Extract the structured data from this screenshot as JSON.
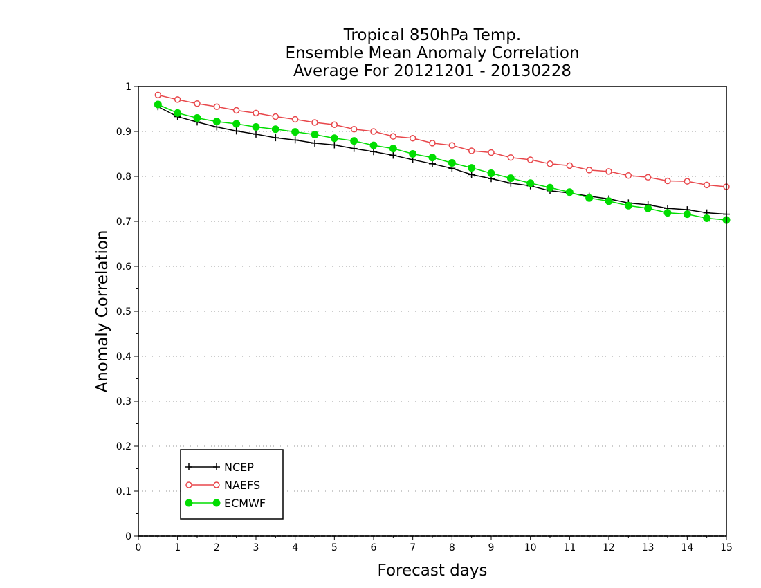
{
  "chart_data": {
    "type": "line",
    "title": [
      "Tropical 850hPa Temp.",
      "Ensemble Mean Anomaly Correlation",
      "Average For 20121201 - 20130228"
    ],
    "xlabel": "Forecast days",
    "ylabel": "Anomaly Correlation",
    "xlim": [
      0,
      15
    ],
    "ylim": [
      0,
      1
    ],
    "xticks": [
      "0",
      "1",
      "2",
      "3",
      "4",
      "5",
      "6",
      "7",
      "8",
      "9",
      "10",
      "11",
      "12",
      "13",
      "14",
      "15"
    ],
    "yticks": [
      "0",
      "0.1",
      "0.2",
      "0.3",
      "0.4",
      "0.5",
      "0.6",
      "0.7",
      "0.8",
      "0.9",
      "1"
    ],
    "grid": "horizontal-dotted",
    "legend_position": "bottom-left",
    "x": [
      0.5,
      1,
      1.5,
      2,
      2.5,
      3,
      3.5,
      4,
      4.5,
      5,
      5.5,
      6,
      6.5,
      7,
      7.5,
      8,
      8.5,
      9,
      9.5,
      10,
      10.5,
      11,
      11.5,
      12,
      12.5,
      13,
      13.5,
      14,
      14.5,
      15
    ],
    "series": [
      {
        "name": "NCEP",
        "color": "#000000",
        "marker": "plus",
        "values": [
          0.955,
          0.933,
          0.921,
          0.91,
          0.901,
          0.894,
          0.886,
          0.881,
          0.874,
          0.87,
          0.862,
          0.855,
          0.847,
          0.837,
          0.828,
          0.818,
          0.804,
          0.795,
          0.785,
          0.779,
          0.768,
          0.763,
          0.756,
          0.75,
          0.741,
          0.737,
          0.729,
          0.726,
          0.719,
          0.716
        ]
      },
      {
        "name": "NAEFS",
        "color": "#e8474b",
        "marker": "open-circle",
        "values": [
          0.981,
          0.971,
          0.962,
          0.955,
          0.947,
          0.941,
          0.933,
          0.927,
          0.92,
          0.915,
          0.905,
          0.9,
          0.889,
          0.885,
          0.874,
          0.869,
          0.857,
          0.853,
          0.842,
          0.837,
          0.828,
          0.824,
          0.814,
          0.811,
          0.802,
          0.798,
          0.79,
          0.789,
          0.781,
          0.777
        ]
      },
      {
        "name": "ECMWF",
        "color": "#00dd00",
        "marker": "filled-circle",
        "values": [
          0.96,
          0.941,
          0.93,
          0.922,
          0.917,
          0.91,
          0.905,
          0.899,
          0.893,
          0.885,
          0.879,
          0.869,
          0.862,
          0.85,
          0.842,
          0.83,
          0.819,
          0.807,
          0.796,
          0.785,
          0.775,
          0.765,
          0.752,
          0.745,
          0.735,
          0.729,
          0.719,
          0.716,
          0.707,
          0.703
        ]
      }
    ]
  }
}
